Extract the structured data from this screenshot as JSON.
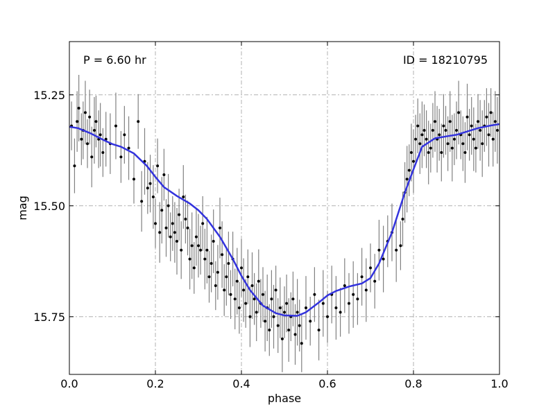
{
  "chart_data": {
    "type": "scatter",
    "title": "",
    "xlabel": "phase",
    "ylabel": "mag",
    "xlim": [
      0.0,
      1.0
    ],
    "ylim": [
      15.88,
      15.13
    ],
    "y_inverted": true,
    "grid": true,
    "x_ticks": [
      "0.0",
      "0.2",
      "0.4",
      "0.6",
      "0.8",
      "1.0"
    ],
    "y_ticks": [
      "15.25",
      "15.50",
      "15.75"
    ],
    "annotations": {
      "left": "P = 6.60 hr",
      "right": "ID = 18210795"
    },
    "colors": {
      "points": "#000000",
      "errorbars": "#808080",
      "fit": "#3333dd"
    },
    "fit_curve": {
      "x": [
        0.0,
        0.02,
        0.05,
        0.08,
        0.1,
        0.12,
        0.15,
        0.18,
        0.2,
        0.22,
        0.25,
        0.28,
        0.3,
        0.32,
        0.35,
        0.38,
        0.4,
        0.42,
        0.45,
        0.48,
        0.5,
        0.53,
        0.55,
        0.58,
        0.6,
        0.62,
        0.65,
        0.68,
        0.7,
        0.72,
        0.75,
        0.78,
        0.8,
        0.82,
        0.85,
        0.88,
        0.9,
        0.92,
        0.95,
        0.98,
        1.0
      ],
      "y": [
        15.322,
        15.325,
        15.337,
        15.352,
        15.361,
        15.367,
        15.382,
        15.41,
        15.435,
        15.458,
        15.478,
        15.495,
        15.51,
        15.53,
        15.57,
        15.62,
        15.658,
        15.69,
        15.725,
        15.742,
        15.747,
        15.748,
        15.74,
        15.718,
        15.702,
        15.692,
        15.682,
        15.675,
        15.663,
        15.63,
        15.56,
        15.47,
        15.418,
        15.367,
        15.348,
        15.343,
        15.34,
        15.334,
        15.325,
        15.319,
        15.316
      ]
    },
    "series": [
      {
        "x": [
          0.005,
          0.012,
          0.018,
          0.022,
          0.028,
          0.032,
          0.037,
          0.042,
          0.047,
          0.052,
          0.058,
          0.062,
          0.068,
          0.072,
          0.078,
          0.085,
          0.095,
          0.108,
          0.12,
          0.128,
          0.138,
          0.15,
          0.16,
          0.168,
          0.175,
          0.182,
          0.188,
          0.195,
          0.2,
          0.205,
          0.21,
          0.215,
          0.22,
          0.225,
          0.23,
          0.235,
          0.24,
          0.245,
          0.25,
          0.255,
          0.26,
          0.265,
          0.27,
          0.275,
          0.28,
          0.285,
          0.29,
          0.295,
          0.3,
          0.305,
          0.31,
          0.315,
          0.32,
          0.325,
          0.33,
          0.335,
          0.34,
          0.345,
          0.35,
          0.355,
          0.36,
          0.365,
          0.37,
          0.375,
          0.38,
          0.385,
          0.39,
          0.395,
          0.4,
          0.405,
          0.41,
          0.415,
          0.42,
          0.425,
          0.43,
          0.435,
          0.44,
          0.445,
          0.45,
          0.455,
          0.46,
          0.465,
          0.47,
          0.475,
          0.48,
          0.485,
          0.49,
          0.495,
          0.5,
          0.505,
          0.51,
          0.515,
          0.52,
          0.525,
          0.53,
          0.535,
          0.54,
          0.55,
          0.56,
          0.57,
          0.58,
          0.59,
          0.6,
          0.61,
          0.62,
          0.63,
          0.64,
          0.65,
          0.66,
          0.67,
          0.68,
          0.69,
          0.7,
          0.71,
          0.72,
          0.73,
          0.74,
          0.75,
          0.76,
          0.77,
          0.775,
          0.78,
          0.785,
          0.79,
          0.795,
          0.8,
          0.805,
          0.81,
          0.815,
          0.82,
          0.825,
          0.83,
          0.835,
          0.84,
          0.845,
          0.85,
          0.855,
          0.86,
          0.865,
          0.87,
          0.875,
          0.88,
          0.885,
          0.89,
          0.895,
          0.9,
          0.905,
          0.91,
          0.915,
          0.92,
          0.925,
          0.93,
          0.935,
          0.94,
          0.945,
          0.95,
          0.955,
          0.96,
          0.965,
          0.97,
          0.975,
          0.98,
          0.985,
          0.99,
          0.995
        ],
        "y": [
          15.32,
          15.41,
          15.31,
          15.28,
          15.35,
          15.33,
          15.29,
          15.36,
          15.3,
          15.39,
          15.33,
          15.31,
          15.35,
          15.34,
          15.38,
          15.35,
          15.36,
          15.32,
          15.39,
          15.34,
          15.37,
          15.44,
          15.31,
          15.49,
          15.4,
          15.46,
          15.45,
          15.48,
          15.54,
          15.41,
          15.56,
          15.51,
          15.43,
          15.55,
          15.5,
          15.57,
          15.54,
          15.56,
          15.58,
          15.52,
          15.6,
          15.48,
          15.53,
          15.55,
          15.62,
          15.59,
          15.64,
          15.57,
          15.59,
          15.6,
          15.54,
          15.62,
          15.6,
          15.66,
          15.63,
          15.58,
          15.68,
          15.65,
          15.55,
          15.61,
          15.69,
          15.66,
          15.63,
          15.7,
          15.62,
          15.71,
          15.67,
          15.73,
          15.64,
          15.69,
          15.72,
          15.66,
          15.75,
          15.68,
          15.71,
          15.74,
          15.67,
          15.72,
          15.7,
          15.76,
          15.73,
          15.78,
          15.71,
          15.75,
          15.69,
          15.77,
          15.73,
          15.8,
          15.74,
          15.72,
          15.78,
          15.75,
          15.71,
          15.79,
          15.74,
          15.77,
          15.81,
          15.73,
          15.76,
          15.7,
          15.78,
          15.72,
          15.75,
          15.7,
          15.73,
          15.74,
          15.68,
          15.72,
          15.7,
          15.71,
          15.66,
          15.69,
          15.64,
          15.67,
          15.6,
          15.62,
          15.58,
          15.56,
          15.6,
          15.59,
          15.53,
          15.47,
          15.44,
          15.42,
          15.38,
          15.4,
          15.35,
          15.32,
          15.36,
          15.34,
          15.33,
          15.35,
          15.38,
          15.37,
          15.33,
          15.31,
          15.35,
          15.34,
          15.38,
          15.32,
          15.33,
          15.36,
          15.31,
          15.37,
          15.35,
          15.33,
          15.29,
          15.34,
          15.36,
          15.38,
          15.3,
          15.34,
          15.32,
          15.35,
          15.37,
          15.31,
          15.33,
          15.36,
          15.32,
          15.3,
          15.34,
          15.29,
          15.35,
          15.31,
          15.33
        ]
      }
    ]
  }
}
